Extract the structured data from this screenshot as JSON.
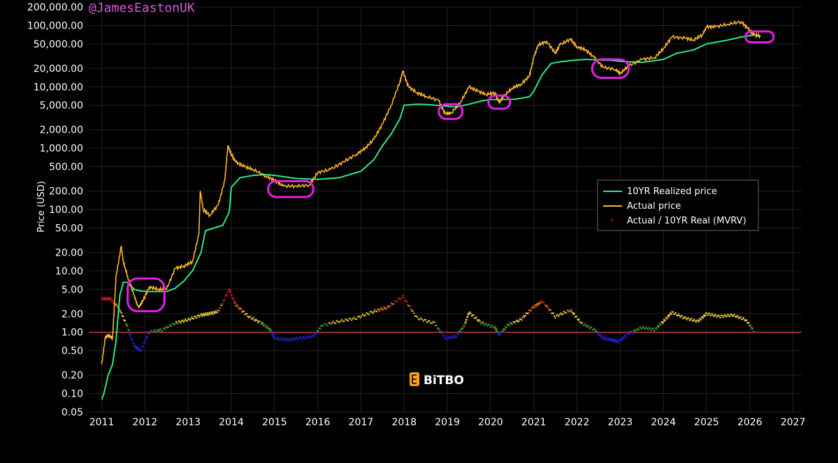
{
  "watermark": "@JamesEastonUK",
  "brand": "BiTBO",
  "colors": {
    "realized": "#2ee88a",
    "price": "#ffb627",
    "highlight": "#e61ee6",
    "baseline": "#c8324a",
    "brand_orange": "#f7a21b",
    "watermark": "#d25ad2"
  },
  "chart_data": {
    "type": "line",
    "ylabel": "Price (USD)",
    "xlabel": "",
    "y_scale": "log",
    "ylim": [
      0.05,
      200000
    ],
    "xlim": [
      2010.7,
      2027.2
    ],
    "y_ticks": [
      "0.05",
      "0.10",
      "0.20",
      "0.50",
      "1.00",
      "2.00",
      "5.00",
      "10.00",
      "20.00",
      "50.00",
      "100.00",
      "200.00",
      "500.00",
      "1,000.00",
      "2,000.00",
      "5,000.00",
      "10,000.00",
      "20,000.00",
      "50,000.00",
      "100,000.00",
      "200,000.00"
    ],
    "y_tick_values": [
      0.05,
      0.1,
      0.2,
      0.5,
      1,
      2,
      5,
      10,
      20,
      50,
      100,
      200,
      500,
      1000,
      2000,
      5000,
      10000,
      20000,
      50000,
      100000,
      200000
    ],
    "x_ticks": [
      "2011",
      "2012",
      "2013",
      "2014",
      "2015",
      "2016",
      "2017",
      "2018",
      "2019",
      "2020",
      "2021",
      "2022",
      "2023",
      "2024",
      "2025",
      "2026",
      "2027"
    ],
    "x_tick_values": [
      2011,
      2012,
      2013,
      2014,
      2015,
      2016,
      2017,
      2018,
      2019,
      2020,
      2021,
      2022,
      2023,
      2024,
      2025,
      2026,
      2027
    ],
    "grid": true,
    "legend_position": "right",
    "legend": [
      "10YR Realized price",
      "Actual price",
      "Actual / 10YR Real (MVRV)"
    ],
    "reference_line": 1,
    "series": [
      {
        "name": "10YR Realized price",
        "x": [
          2011.0,
          2011.05,
          2011.15,
          2011.25,
          2011.33,
          2011.42,
          2011.5,
          2011.6,
          2011.75,
          2011.9,
          2012.1,
          2012.3,
          2012.5,
          2012.7,
          2012.9,
          2013.1,
          2013.3,
          2013.4,
          2013.6,
          2013.8,
          2013.95,
          2014.0,
          2014.2,
          2014.5,
          2014.8,
          2015.0,
          2015.5,
          2016.0,
          2016.5,
          2017.0,
          2017.3,
          2017.5,
          2017.7,
          2017.9,
          2018.0,
          2018.3,
          2018.6,
          2018.9,
          2019.2,
          2019.5,
          2019.8,
          2020.0,
          2020.3,
          2020.6,
          2020.9,
          2021.0,
          2021.2,
          2021.4,
          2021.6,
          2021.9,
          2022.2,
          2022.5,
          2022.8,
          2023.0,
          2023.5,
          2024.0,
          2024.3,
          2024.7,
          2025.0,
          2025.5,
          2025.8,
          2026.1
        ],
        "y": [
          0.08,
          0.1,
          0.2,
          0.3,
          0.7,
          4,
          6.5,
          6.5,
          5,
          4.7,
          4.6,
          4.6,
          4.6,
          5.2,
          6.8,
          10,
          20,
          45,
          50,
          55,
          90,
          230,
          330,
          360,
          370,
          360,
          320,
          310,
          330,
          420,
          650,
          1100,
          1700,
          3000,
          5000,
          5200,
          5100,
          4900,
          4700,
          5200,
          5900,
          6200,
          6200,
          6300,
          6900,
          8500,
          16000,
          24000,
          25500,
          27000,
          28000,
          27500,
          27000,
          26000,
          25000,
          28000,
          35000,
          40000,
          50000,
          58000,
          65000,
          70000
        ]
      },
      {
        "name": "Actual price",
        "x": [
          2011.0,
          2011.08,
          2011.15,
          2011.25,
          2011.33,
          2011.45,
          2011.5,
          2011.6,
          2011.75,
          2011.85,
          2011.95,
          2012.1,
          2012.3,
          2012.5,
          2012.7,
          2012.9,
          2013.1,
          2013.25,
          2013.28,
          2013.35,
          2013.5,
          2013.7,
          2013.85,
          2013.92,
          2014.0,
          2014.1,
          2014.3,
          2014.5,
          2014.8,
          2015.0,
          2015.2,
          2015.5,
          2015.8,
          2016.0,
          2016.3,
          2016.6,
          2016.9,
          2017.1,
          2017.3,
          2017.5,
          2017.7,
          2017.9,
          2017.97,
          2018.1,
          2018.3,
          2018.5,
          2018.8,
          2018.95,
          2019.1,
          2019.3,
          2019.5,
          2019.7,
          2019.9,
          2020.1,
          2020.2,
          2020.3,
          2020.5,
          2020.7,
          2020.9,
          2021.0,
          2021.1,
          2021.3,
          2021.5,
          2021.6,
          2021.85,
          2022.0,
          2022.2,
          2022.4,
          2022.6,
          2022.9,
          2023.0,
          2023.2,
          2023.5,
          2023.8,
          2024.0,
          2024.2,
          2024.5,
          2024.7,
          2024.9,
          2025.0,
          2025.2,
          2025.5,
          2025.8,
          2025.95,
          2026.1,
          2026.25
        ],
        "y": [
          0.3,
          0.8,
          0.9,
          0.8,
          8,
          25,
          14,
          8,
          4,
          2.5,
          3.2,
          5.5,
          5,
          5,
          11,
          12,
          14,
          40,
          200,
          100,
          80,
          120,
          300,
          1100,
          800,
          600,
          500,
          450,
          350,
          300,
          240,
          240,
          250,
          400,
          450,
          600,
          800,
          1000,
          1400,
          2500,
          5000,
          12000,
          18000,
          10000,
          8000,
          7000,
          6000,
          3600,
          3800,
          5500,
          10000,
          8500,
          7500,
          8000,
          5500,
          7000,
          9500,
          11000,
          15000,
          30000,
          48000,
          55000,
          35000,
          48000,
          60000,
          45000,
          40000,
          30000,
          21000,
          19000,
          16500,
          22000,
          28000,
          30000,
          42000,
          65000,
          62000,
          58000,
          70000,
          95000,
          95000,
          105000,
          115000,
          90000,
          70000,
          67000
        ]
      },
      {
        "name": "Actual / 10YR Real (MVRV)",
        "x": [
          2011.0,
          2011.2,
          2011.4,
          2011.6,
          2011.75,
          2011.9,
          2012.1,
          2012.4,
          2012.7,
          2013.0,
          2013.3,
          2013.5,
          2013.7,
          2013.95,
          2014.1,
          2014.4,
          2014.7,
          2014.9,
          2015.0,
          2015.3,
          2015.6,
          2015.9,
          2016.1,
          2016.5,
          2016.9,
          2017.3,
          2017.6,
          2017.97,
          2018.3,
          2018.7,
          2018.95,
          2019.2,
          2019.4,
          2019.5,
          2019.8,
          2020.1,
          2020.2,
          2020.4,
          2020.7,
          2021.0,
          2021.2,
          2021.5,
          2021.85,
          2022.1,
          2022.4,
          2022.6,
          2022.8,
          2022.95,
          2023.2,
          2023.5,
          2023.8,
          2024.0,
          2024.2,
          2024.5,
          2024.8,
          2025.0,
          2025.3,
          2025.6,
          2025.9,
          2026.1
        ],
        "y": [
          3.5,
          3.5,
          2.5,
          1.2,
          0.6,
          0.5,
          1.0,
          1.1,
          1.4,
          1.6,
          1.9,
          2.0,
          2.2,
          5.0,
          2.8,
          1.8,
          1.4,
          1.1,
          0.8,
          0.75,
          0.8,
          0.85,
          1.3,
          1.5,
          1.7,
          2.2,
          2.5,
          3.8,
          1.7,
          1.4,
          0.8,
          0.85,
          1.3,
          2.1,
          1.4,
          1.2,
          0.9,
          1.3,
          1.6,
          2.6,
          3.2,
          1.8,
          2.3,
          1.4,
          1.1,
          0.8,
          0.75,
          0.7,
          0.95,
          1.2,
          1.1,
          1.5,
          2.1,
          1.7,
          1.5,
          2.0,
          1.8,
          1.9,
          1.6,
          1.05
        ]
      }
    ]
  }
}
